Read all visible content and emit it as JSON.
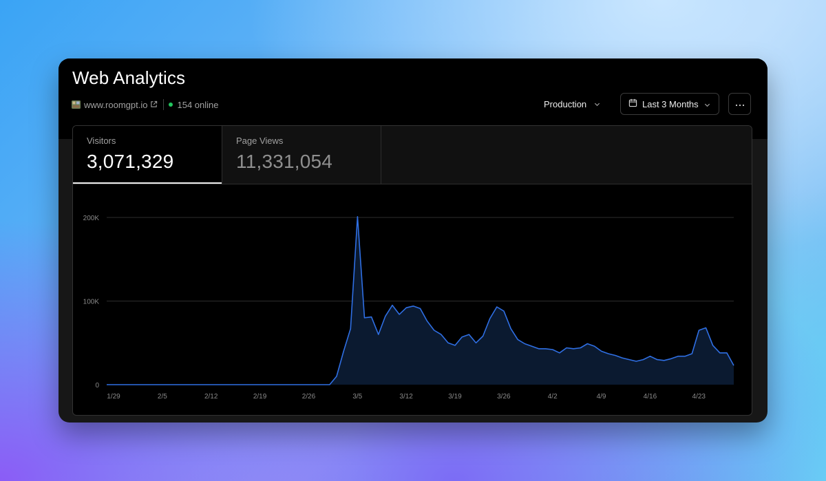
{
  "title": "Web Analytics",
  "site": {
    "favicon": "room-icon",
    "domain": "www.roomgpt.io",
    "online": "154 online"
  },
  "controls": {
    "environment": "Production",
    "range": "Last 3 Months",
    "more": "···"
  },
  "tabs": [
    {
      "label": "Visitors",
      "value": "3,071,329",
      "active": true
    },
    {
      "label": "Page Views",
      "value": "11,331,054",
      "active": false
    }
  ],
  "colors": {
    "line": "#2f6fe4",
    "area": "#0b1a30",
    "online_dot": "#22c55e"
  },
  "chart_data": {
    "type": "area",
    "x_ticks": [
      "1/29",
      "2/5",
      "2/12",
      "2/19",
      "2/26",
      "3/5",
      "3/12",
      "3/19",
      "3/26",
      "4/2",
      "4/9",
      "4/16",
      "4/23"
    ],
    "y_ticks": [
      "0",
      "100K",
      "200K"
    ],
    "ylim": [
      0,
      200000
    ],
    "grid": true,
    "series": [
      {
        "values": [
          0,
          0,
          0,
          0,
          0,
          0,
          0,
          0,
          0,
          0,
          0,
          0,
          0,
          0,
          0,
          0,
          0,
          0,
          0,
          0,
          0,
          0,
          0,
          0,
          0,
          0,
          0,
          0,
          0,
          0,
          0,
          0,
          0,
          10000,
          40000,
          67000,
          201000,
          80000,
          81000,
          60000,
          82000,
          95000,
          84000,
          92000,
          94000,
          91000,
          76000,
          65000,
          60000,
          50000,
          47000,
          57000,
          60000,
          50000,
          58000,
          79000,
          93000,
          88000,
          67000,
          54000,
          49000,
          46000,
          43000,
          43000,
          42000,
          38000,
          44000,
          43000,
          44000,
          49000,
          46000,
          40000,
          37000,
          35000,
          32000,
          30000,
          28000,
          30000,
          34000,
          30000,
          29000,
          31000,
          34000,
          34000,
          37000,
          65000,
          68000,
          47000,
          38000,
          38000,
          23000
        ]
      }
    ]
  }
}
